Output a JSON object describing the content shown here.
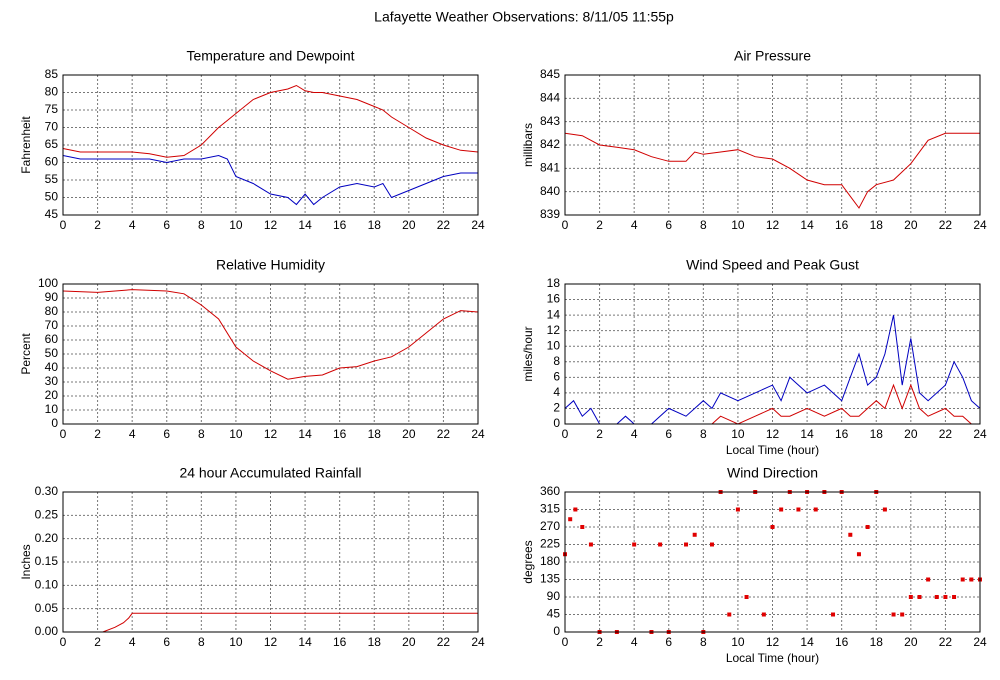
{
  "title": "Lafayette Weather Observations: 8/11/05 11:55p",
  "chart_data": [
    {
      "type": "line",
      "title": "Temperature and Dewpoint",
      "y_label": "Fahrenheit",
      "x": [
        0,
        1,
        2,
        3,
        4,
        5,
        6,
        7,
        8,
        9,
        9.5,
        10,
        11,
        12,
        13,
        13.5,
        14,
        14.5,
        15,
        16,
        17,
        18,
        18.5,
        19,
        20,
        21,
        22,
        23,
        24
      ],
      "series": [
        {
          "color": "#d00000",
          "values": [
            64,
            63,
            63,
            63,
            63,
            62.5,
            61.5,
            62,
            65,
            70,
            72,
            74,
            78,
            80,
            81,
            82,
            80.5,
            80,
            80,
            79,
            78,
            76,
            75,
            73,
            70,
            67,
            65,
            63.5,
            63
          ]
        },
        {
          "color": "#0000c0",
          "values": [
            62,
            61,
            61,
            61,
            61,
            61,
            60,
            61,
            61,
            62,
            61,
            56,
            54,
            51,
            50,
            48,
            51,
            48,
            50,
            53,
            54,
            53,
            54,
            50,
            52,
            54,
            56,
            57,
            57
          ]
        }
      ],
      "xlim": [
        0,
        24
      ],
      "xticks": [
        0,
        2,
        4,
        6,
        8,
        10,
        12,
        14,
        16,
        18,
        20,
        22,
        24
      ],
      "ylim": [
        45,
        85
      ],
      "yticks": [
        45,
        50,
        55,
        60,
        65,
        70,
        75,
        80,
        85
      ],
      "grid": true
    },
    {
      "type": "line",
      "title": "Air Pressure",
      "y_label": "millibars",
      "x": [
        0,
        1,
        2,
        3,
        4,
        5,
        6,
        7,
        7.5,
        8,
        9,
        10,
        11,
        12,
        13,
        14,
        15,
        16,
        16.5,
        17,
        17.5,
        18,
        19,
        20,
        21,
        22,
        23,
        24
      ],
      "series": [
        {
          "color": "#d00000",
          "values": [
            842.5,
            842.4,
            842.0,
            841.9,
            841.8,
            841.5,
            841.3,
            841.3,
            841.7,
            841.6,
            841.7,
            841.8,
            841.5,
            841.4,
            841.0,
            840.5,
            840.3,
            840.3,
            839.8,
            839.3,
            840.0,
            840.3,
            840.5,
            841.2,
            842.2,
            842.5,
            842.5,
            842.5
          ]
        }
      ],
      "xlim": [
        0,
        24
      ],
      "xticks": [
        0,
        2,
        4,
        6,
        8,
        10,
        12,
        14,
        16,
        18,
        20,
        22,
        24
      ],
      "ylim": [
        839,
        845
      ],
      "yticks": [
        839,
        840,
        841,
        842,
        843,
        844,
        845
      ],
      "grid": true
    },
    {
      "type": "line",
      "title": "Relative Humidity",
      "y_label": "Percent",
      "x": [
        0,
        2,
        4,
        6,
        7,
        8,
        9,
        10,
        11,
        12,
        13,
        14,
        15,
        16,
        17,
        18,
        19,
        20,
        21,
        22,
        23,
        24
      ],
      "series": [
        {
          "color": "#d00000",
          "values": [
            95,
            94,
            96,
            95,
            93,
            85,
            75,
            55,
            45,
            38,
            32,
            34,
            35,
            40,
            41,
            45,
            48,
            55,
            65,
            75,
            81,
            80
          ]
        }
      ],
      "xlim": [
        0,
        24
      ],
      "xticks": [
        0,
        2,
        4,
        6,
        8,
        10,
        12,
        14,
        16,
        18,
        20,
        22,
        24
      ],
      "ylim": [
        0,
        100
      ],
      "yticks": [
        0,
        10,
        20,
        30,
        40,
        50,
        60,
        70,
        80,
        90,
        100
      ],
      "grid": true
    },
    {
      "type": "line",
      "title": "Wind Speed and Peak Gust",
      "y_label": "miles/hour",
      "x_label": "Local Time (hour)",
      "x": [
        0,
        0.5,
        1,
        1.5,
        2,
        3,
        3.5,
        4,
        5,
        6,
        7,
        8,
        8.5,
        9,
        10,
        11,
        12,
        12.5,
        13,
        14,
        15,
        16,
        16.5,
        17,
        17.5,
        18,
        18.5,
        19,
        19.5,
        20,
        20.5,
        21,
        22,
        22.5,
        23,
        23.5,
        24
      ],
      "series": [
        {
          "color": "#0000c0",
          "values": [
            2,
            3,
            1,
            2,
            0,
            0,
            1,
            0,
            0,
            2,
            1,
            3,
            2,
            4,
            3,
            4,
            5,
            3,
            6,
            4,
            5,
            3,
            6,
            9,
            5,
            6,
            9,
            14,
            5,
            11,
            4,
            3,
            5,
            8,
            6,
            3,
            2
          ]
        },
        {
          "color": "#d00000",
          "values": [
            0,
            0,
            0,
            0,
            0,
            0,
            0,
            0,
            0,
            0,
            0,
            0,
            0,
            1,
            0,
            1,
            2,
            1,
            1,
            2,
            1,
            2,
            1,
            1,
            2,
            3,
            2,
            5,
            2,
            5,
            2,
            1,
            2,
            1,
            1,
            0,
            0
          ]
        }
      ],
      "xlim": [
        0,
        24
      ],
      "xticks": [
        0,
        2,
        4,
        6,
        8,
        10,
        12,
        14,
        16,
        18,
        20,
        22,
        24
      ],
      "ylim": [
        0,
        18
      ],
      "yticks": [
        0,
        2,
        4,
        6,
        8,
        10,
        12,
        14,
        16,
        18
      ],
      "grid": true
    },
    {
      "type": "line",
      "title": "24 hour Accumulated Rainfall",
      "y_label": "Inches",
      "x": [
        0,
        2.3,
        3,
        3.5,
        3.8,
        4,
        24
      ],
      "series": [
        {
          "color": "#d00000",
          "values": [
            0,
            0,
            0.01,
            0.02,
            0.03,
            0.04,
            0.04
          ]
        }
      ],
      "xlim": [
        0,
        24
      ],
      "xticks": [
        0,
        2,
        4,
        6,
        8,
        10,
        12,
        14,
        16,
        18,
        20,
        22,
        24
      ],
      "ylim": [
        0,
        0.3
      ],
      "yticks": [
        {
          "value": 0,
          "label": "0.00"
        },
        {
          "value": 0.05,
          "label": "0.05"
        },
        {
          "value": 0.1,
          "label": "0.10"
        },
        {
          "value": 0.15,
          "label": "0.15"
        },
        {
          "value": 0.2,
          "label": "0.20"
        },
        {
          "value": 0.25,
          "label": "0.25"
        },
        {
          "value": 0.3,
          "label": "0.30"
        }
      ],
      "grid": true
    },
    {
      "type": "scatter",
      "title": "Wind Direction",
      "y_label": "degrees",
      "x_label": "Local Time (hour)",
      "x": [
        0,
        0.3,
        0.6,
        1,
        1.5,
        2,
        3,
        4,
        5,
        5.5,
        6,
        7,
        7.5,
        8,
        8.5,
        9,
        9.5,
        10,
        10.5,
        11,
        11.5,
        12,
        12.5,
        13,
        13.5,
        14,
        14.5,
        15,
        15.5,
        16,
        16.5,
        17,
        17.5,
        18,
        18.5,
        19,
        19.5,
        20,
        20.5,
        21,
        21.5,
        22,
        22.5,
        23,
        23.5,
        24
      ],
      "series": [
        {
          "color": "#e00000",
          "values": [
            200,
            290,
            315,
            270,
            225,
            0,
            0,
            225,
            0,
            225,
            0,
            225,
            250,
            0,
            225,
            360,
            45,
            315,
            90,
            360,
            45,
            270,
            315,
            360,
            315,
            360,
            315,
            360,
            45,
            360,
            250,
            200,
            270,
            360,
            315,
            45,
            45,
            90,
            90,
            135,
            90,
            90,
            90,
            135,
            135,
            135
          ]
        }
      ],
      "xlim": [
        0,
        24
      ],
      "xticks": [
        0,
        2,
        4,
        6,
        8,
        10,
        12,
        14,
        16,
        18,
        20,
        22,
        24
      ],
      "ylim": [
        0,
        360
      ],
      "yticks": [
        0,
        45,
        90,
        135,
        180,
        225,
        270,
        315,
        360
      ],
      "grid": true
    }
  ]
}
